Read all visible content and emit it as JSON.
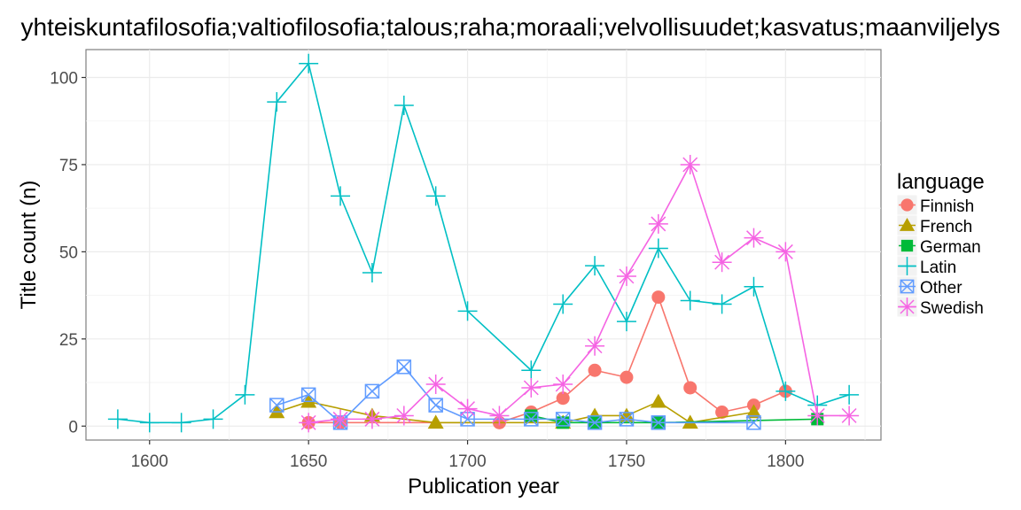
{
  "chart_data": {
    "type": "line",
    "title": "yhteiskuntafilosofia;valtiofilosofia;talous;raha;moraali;velvollisuudet;kasvatus;maanviljelys",
    "xlabel": "Publication year",
    "ylabel": "Title count (n)",
    "xlim": [
      1580,
      1830
    ],
    "ylim": [
      -4,
      108
    ],
    "x_ticks": [
      1600,
      1650,
      1700,
      1750,
      1800
    ],
    "y_ticks": [
      0,
      25,
      50,
      75,
      100
    ],
    "x_tick_labels": [
      "1600",
      "1650",
      "1700",
      "1750",
      "1800"
    ],
    "y_tick_labels": [
      "0",
      "25",
      "50",
      "75",
      "100"
    ],
    "grid": true,
    "legend": {
      "title": "language",
      "position": "right"
    },
    "series": [
      {
        "name": "Finnish",
        "color": "#F8766D",
        "marker": "circle",
        "x": [
          1650,
          1660,
          1710,
          1720,
          1730,
          1740,
          1750,
          1760,
          1770,
          1780,
          1790,
          1800
        ],
        "y": [
          1,
          1,
          1,
          4,
          8,
          16,
          14,
          37,
          11,
          4,
          6,
          10
        ]
      },
      {
        "name": "French",
        "color": "#B79F00",
        "marker": "triangle",
        "x": [
          1640,
          1650,
          1670,
          1690,
          1730,
          1740,
          1750,
          1760,
          1770,
          1790
        ],
        "y": [
          4,
          7,
          3,
          1,
          1,
          3,
          3,
          7,
          1,
          4
        ]
      },
      {
        "name": "German",
        "color": "#00BA38",
        "marker": "square",
        "x": [
          1720,
          1730,
          1740,
          1760,
          1810
        ],
        "y": [
          3,
          1,
          1,
          1,
          2
        ]
      },
      {
        "name": "Latin",
        "color": "#00BFC4",
        "marker": "plus",
        "x": [
          1590,
          1600,
          1610,
          1620,
          1630,
          1640,
          1650,
          1660,
          1670,
          1680,
          1690,
          1700,
          1720,
          1730,
          1740,
          1750,
          1760,
          1770,
          1780,
          1790,
          1800,
          1810,
          1820
        ],
        "y": [
          2,
          1,
          1,
          2,
          9,
          93,
          104,
          66,
          44,
          92,
          66,
          33,
          16,
          35,
          46,
          30,
          51,
          36,
          35,
          40,
          10,
          6,
          9
        ]
      },
      {
        "name": "Other",
        "color": "#619CFF",
        "marker": "boxx",
        "x": [
          1640,
          1650,
          1660,
          1670,
          1680,
          1690,
          1700,
          1720,
          1730,
          1740,
          1750,
          1760,
          1790
        ],
        "y": [
          6,
          9,
          1,
          10,
          17,
          6,
          2,
          2,
          2,
          1,
          2,
          1,
          1
        ]
      },
      {
        "name": "Swedish",
        "color": "#F564E3",
        "marker": "asterisk",
        "x": [
          1650,
          1660,
          1670,
          1680,
          1690,
          1700,
          1710,
          1720,
          1730,
          1740,
          1750,
          1760,
          1770,
          1780,
          1790,
          1800,
          1810,
          1820
        ],
        "y": [
          1,
          2,
          2,
          3,
          12,
          5,
          3,
          11,
          12,
          23,
          43,
          58,
          75,
          47,
          54,
          50,
          3,
          3
        ]
      }
    ]
  }
}
